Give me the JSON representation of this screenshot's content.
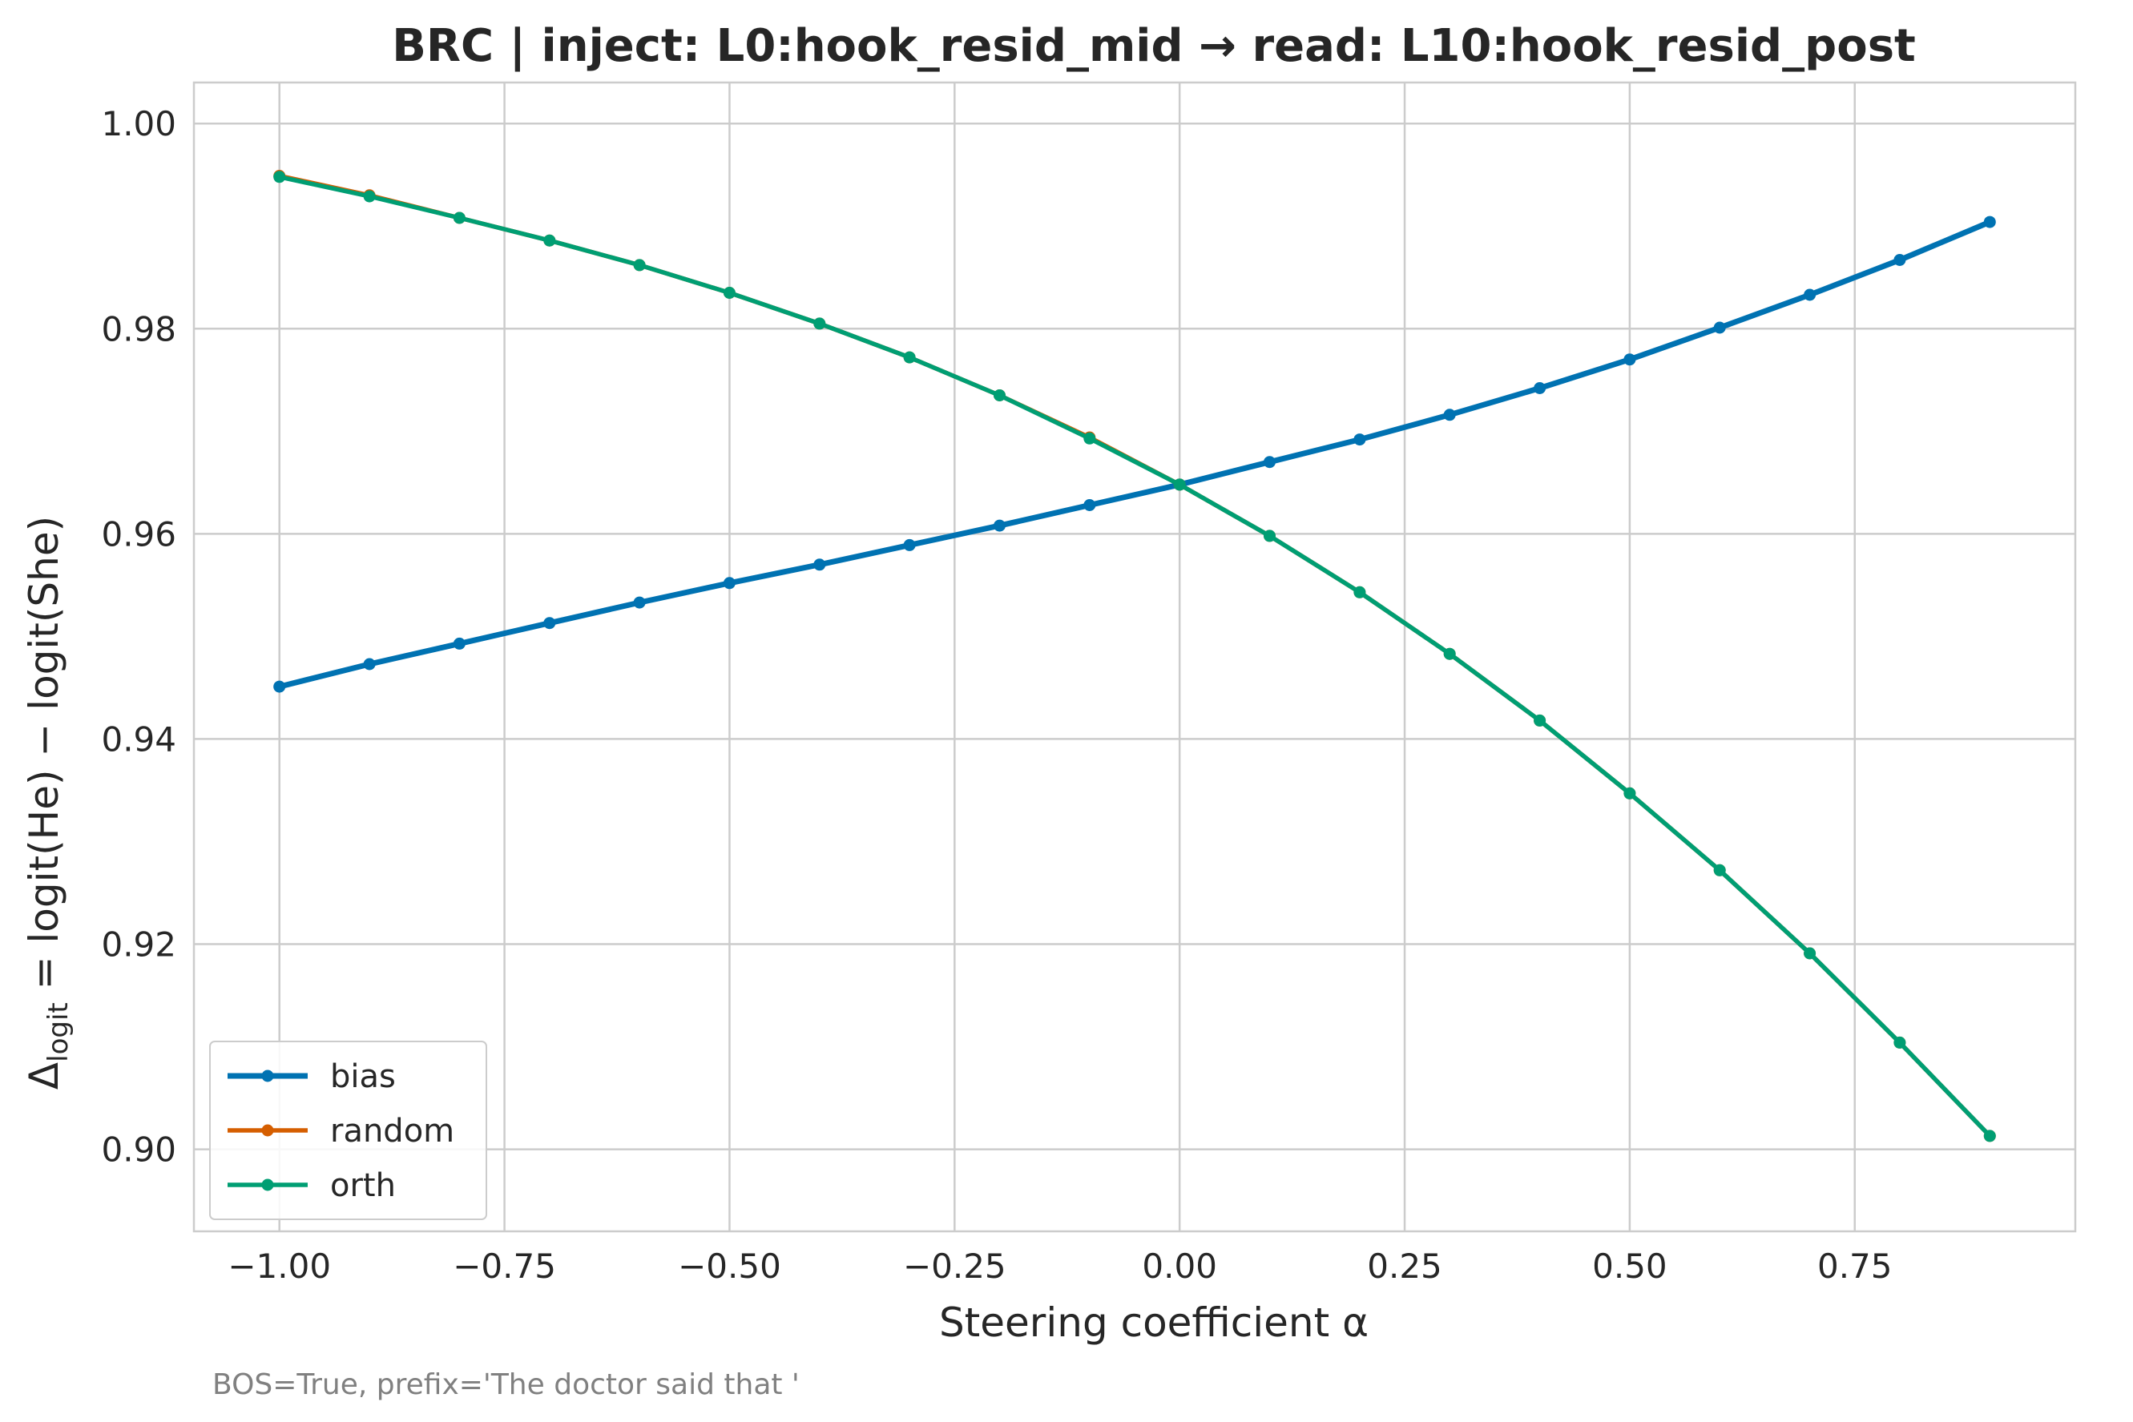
{
  "chart_data": {
    "type": "line",
    "title": "BRC | inject: L0:hook_resid_mid → read: L10:hook_resid_post",
    "xlabel": "Steering coefficient α",
    "ylabel": {
      "prefix": "Δ",
      "subscript": "logit",
      "suffix": " = logit(He) − logit(She)"
    },
    "footnote": "BOS=True, prefix='The doctor said that '",
    "xlim": [
      -1.095,
      0.995
    ],
    "ylim": [
      0.892,
      1.004
    ],
    "xticks": [
      -1.0,
      -0.75,
      -0.5,
      -0.25,
      0.0,
      0.25,
      0.5,
      0.75
    ],
    "xtick_labels": [
      "−1.00",
      "−0.75",
      "−0.50",
      "−0.25",
      "0.00",
      "0.25",
      "0.50",
      "0.75"
    ],
    "yticks": [
      0.9,
      0.92,
      0.94,
      0.96,
      0.98,
      1.0
    ],
    "ytick_labels": [
      "0.90",
      "0.92",
      "0.94",
      "0.96",
      "0.98",
      "1.00"
    ],
    "grid": true,
    "legend_position": "lower-left",
    "x": [
      -1.0,
      -0.9,
      -0.8,
      -0.7,
      -0.6,
      -0.5,
      -0.4,
      -0.3,
      -0.2,
      -0.1,
      0.0,
      0.1,
      0.2,
      0.3,
      0.4,
      0.5,
      0.6,
      0.7,
      0.8,
      0.9
    ],
    "series": [
      {
        "name": "bias",
        "color": "#0072b2",
        "values": [
          0.9451,
          0.9473,
          0.9493,
          0.9513,
          0.9533,
          0.9552,
          0.957,
          0.9589,
          0.9608,
          0.9628,
          0.9648,
          0.967,
          0.9692,
          0.9716,
          0.9742,
          0.977,
          0.9801,
          0.9833,
          0.9867,
          0.9904
        ]
      },
      {
        "name": "random",
        "color": "#d55e00",
        "values": [
          0.9949,
          0.993,
          0.9908,
          0.9886,
          0.9862,
          0.9835,
          0.9805,
          0.9772,
          0.9735,
          0.9694,
          0.9648,
          0.9598,
          0.9543,
          0.9483,
          0.9418,
          0.9347,
          0.9272,
          0.9191,
          0.9104,
          0.9013
        ]
      },
      {
        "name": "orth",
        "color": "#009e73",
        "values": [
          0.9948,
          0.9929,
          0.9908,
          0.9886,
          0.9862,
          0.9835,
          0.9805,
          0.9772,
          0.9735,
          0.9693,
          0.9648,
          0.9598,
          0.9543,
          0.9483,
          0.9418,
          0.9347,
          0.9272,
          0.9191,
          0.9104,
          0.9013
        ]
      }
    ]
  }
}
